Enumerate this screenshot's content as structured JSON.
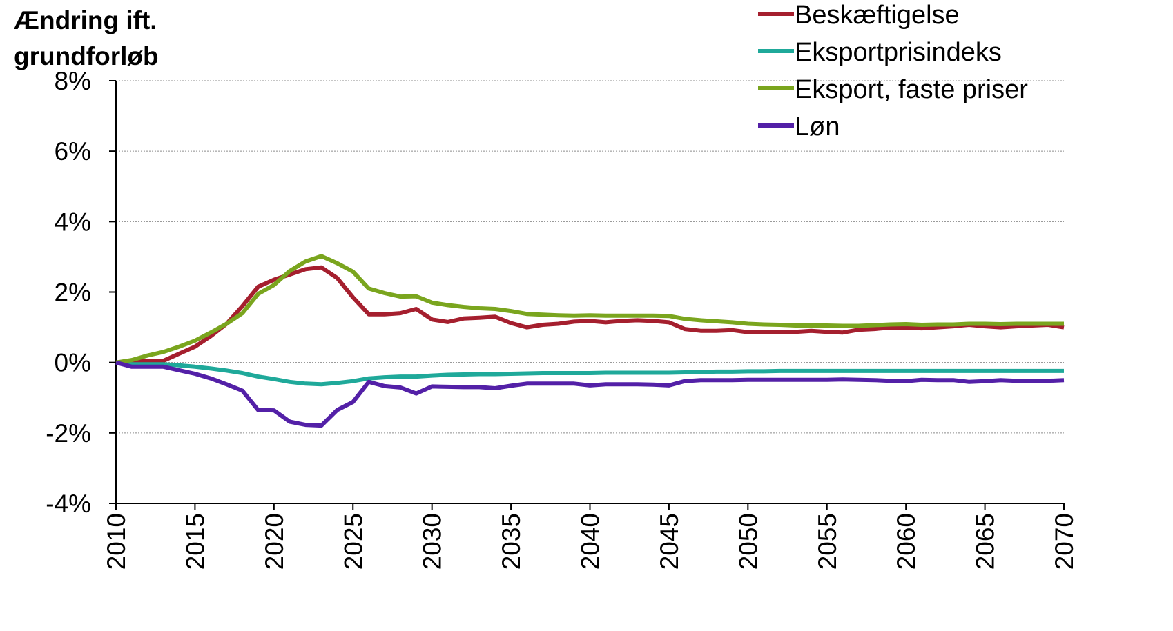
{
  "chart_data": {
    "type": "line",
    "ylabel_lines": [
      "Ændring ift.",
      "grundforløb"
    ],
    "xlabel": "",
    "xlim": [
      2010,
      2070
    ],
    "ylim": [
      -4,
      8
    ],
    "x_ticks": [
      2010,
      2015,
      2020,
      2025,
      2030,
      2035,
      2040,
      2045,
      2050,
      2055,
      2060,
      2065,
      2070
    ],
    "x_tick_labels": [
      "2010",
      "2015",
      "2020",
      "2025",
      "2030",
      "2035",
      "2040",
      "2045",
      "2050",
      "2055",
      "2060",
      "2065",
      "2070"
    ],
    "y_ticks": [
      -4,
      -2,
      0,
      2,
      4,
      6,
      8
    ],
    "y_tick_labels": [
      "-4%",
      "-2%",
      "0%",
      "2%",
      "4%",
      "6%",
      "8%"
    ],
    "grid": true,
    "legend_position": "top-right",
    "x": [
      2010,
      2011,
      2012,
      2013,
      2014,
      2015,
      2016,
      2017,
      2018,
      2019,
      2020,
      2021,
      2022,
      2023,
      2024,
      2025,
      2026,
      2027,
      2028,
      2029,
      2030,
      2031,
      2032,
      2033,
      2034,
      2035,
      2036,
      2037,
      2038,
      2039,
      2040,
      2041,
      2042,
      2043,
      2044,
      2045,
      2046,
      2047,
      2048,
      2049,
      2050,
      2051,
      2052,
      2053,
      2054,
      2055,
      2056,
      2057,
      2058,
      2059,
      2060,
      2061,
      2062,
      2063,
      2064,
      2065,
      2066,
      2067,
      2068,
      2069,
      2070
    ],
    "series": [
      {
        "name": "Beskæftigelse",
        "color": "#a51f2e",
        "values": [
          0,
          0.05,
          0.05,
          0.05,
          0.25,
          0.45,
          0.75,
          1.1,
          1.6,
          2.15,
          2.35,
          2.5,
          2.65,
          2.7,
          2.4,
          1.85,
          1.37,
          1.37,
          1.4,
          1.52,
          1.22,
          1.15,
          1.25,
          1.27,
          1.3,
          1.12,
          1.0,
          1.07,
          1.1,
          1.16,
          1.18,
          1.14,
          1.18,
          1.2,
          1.18,
          1.14,
          0.95,
          0.9,
          0.9,
          0.92,
          0.86,
          0.87,
          0.87,
          0.87,
          0.9,
          0.87,
          0.85,
          0.93,
          0.95,
          0.99,
          0.99,
          0.97,
          1.0,
          1.03,
          1.07,
          1.03,
          1.0,
          1.03,
          1.05,
          1.07,
          1.0
        ]
      },
      {
        "name": "Eksportprisindeks",
        "color": "#1fa99a",
        "values": [
          0,
          -0.05,
          -0.05,
          -0.05,
          -0.08,
          -0.12,
          -0.17,
          -0.23,
          -0.3,
          -0.4,
          -0.47,
          -0.55,
          -0.6,
          -0.62,
          -0.58,
          -0.53,
          -0.45,
          -0.42,
          -0.4,
          -0.4,
          -0.37,
          -0.35,
          -0.34,
          -0.33,
          -0.33,
          -0.32,
          -0.31,
          -0.3,
          -0.3,
          -0.3,
          -0.3,
          -0.29,
          -0.29,
          -0.29,
          -0.29,
          -0.29,
          -0.28,
          -0.27,
          -0.26,
          -0.26,
          -0.25,
          -0.25,
          -0.24,
          -0.24,
          -0.24,
          -0.24,
          -0.24,
          -0.24,
          -0.24,
          -0.24,
          -0.24,
          -0.24,
          -0.24,
          -0.24,
          -0.24,
          -0.24,
          -0.24,
          -0.24,
          -0.24,
          -0.24,
          -0.24
        ]
      },
      {
        "name": "Eksport, faste priser",
        "color": "#7aa51e",
        "values": [
          0,
          0.07,
          0.2,
          0.3,
          0.45,
          0.62,
          0.85,
          1.1,
          1.4,
          1.95,
          2.2,
          2.6,
          2.87,
          3.02,
          2.82,
          2.58,
          2.1,
          1.97,
          1.87,
          1.88,
          1.7,
          1.63,
          1.58,
          1.54,
          1.52,
          1.46,
          1.38,
          1.36,
          1.34,
          1.33,
          1.34,
          1.33,
          1.33,
          1.33,
          1.33,
          1.32,
          1.24,
          1.2,
          1.17,
          1.14,
          1.1,
          1.08,
          1.07,
          1.05,
          1.05,
          1.05,
          1.04,
          1.04,
          1.06,
          1.08,
          1.09,
          1.07,
          1.08,
          1.08,
          1.1,
          1.1,
          1.09,
          1.1,
          1.1,
          1.1,
          1.1
        ]
      },
      {
        "name": "Løn",
        "color": "#5320a7",
        "values": [
          0,
          -0.12,
          -0.12,
          -0.12,
          -0.22,
          -0.32,
          -0.45,
          -0.62,
          -0.8,
          -1.35,
          -1.36,
          -1.68,
          -1.77,
          -1.79,
          -1.35,
          -1.12,
          -0.55,
          -0.67,
          -0.71,
          -0.88,
          -0.68,
          -0.69,
          -0.7,
          -0.7,
          -0.73,
          -0.66,
          -0.6,
          -0.6,
          -0.6,
          -0.6,
          -0.65,
          -0.62,
          -0.62,
          -0.62,
          -0.63,
          -0.65,
          -0.53,
          -0.5,
          -0.5,
          -0.5,
          -0.49,
          -0.49,
          -0.49,
          -0.49,
          -0.49,
          -0.49,
          -0.48,
          -0.49,
          -0.5,
          -0.52,
          -0.53,
          -0.49,
          -0.5,
          -0.5,
          -0.55,
          -0.53,
          -0.5,
          -0.52,
          -0.52,
          -0.52,
          -0.5
        ]
      }
    ]
  }
}
